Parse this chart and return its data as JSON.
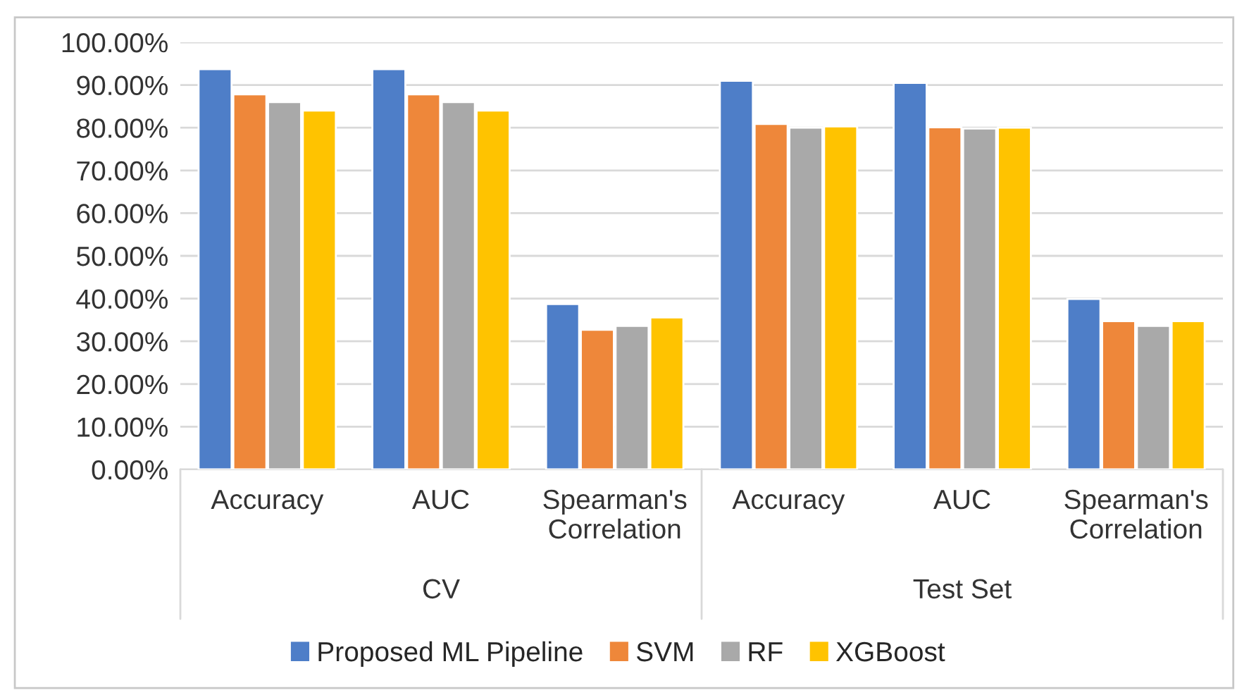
{
  "chart_data": {
    "type": "bar",
    "categories": [
      "Accuracy",
      "AUC",
      "Spearman's\nCorrelation",
      "Accuracy",
      "AUC",
      "Spearman's\nCorrelation"
    ],
    "annotations": [
      "CV",
      "Test Set"
    ],
    "series": [
      {
        "name": "Proposed ML Pipeline",
        "color": "#4e7ec8",
        "values": [
          93.7,
          93.7,
          38.7,
          91.0,
          90.5,
          39.9
        ]
      },
      {
        "name": "SVM",
        "color": "#ee873a",
        "values": [
          87.8,
          87.8,
          32.7,
          80.9,
          80.1,
          34.7
        ]
      },
      {
        "name": "RF",
        "color": "#a9a9a9",
        "values": [
          86.0,
          86.0,
          33.6,
          80.0,
          79.8,
          33.6
        ]
      },
      {
        "name": "XGBoost",
        "color": "#ffc300",
        "values": [
          84.0,
          84.0,
          35.6,
          80.3,
          80.0,
          34.7
        ]
      }
    ],
    "ylim": [
      0,
      100
    ],
    "yticks": [
      {
        "value": 0,
        "label": "0.00%"
      },
      {
        "value": 10,
        "label": "10.00%"
      },
      {
        "value": 20,
        "label": "20.00%"
      },
      {
        "value": 30,
        "label": "30.00%"
      },
      {
        "value": 40,
        "label": "40.00%"
      },
      {
        "value": 50,
        "label": "50.00%"
      },
      {
        "value": 60,
        "label": "60.00%"
      },
      {
        "value": 70,
        "label": "70.00%"
      },
      {
        "value": 80,
        "label": "80.00%"
      },
      {
        "value": 90,
        "label": "90.00%"
      },
      {
        "value": 100,
        "label": "100.00%"
      }
    ],
    "grid": "y",
    "legend": "bottom"
  }
}
